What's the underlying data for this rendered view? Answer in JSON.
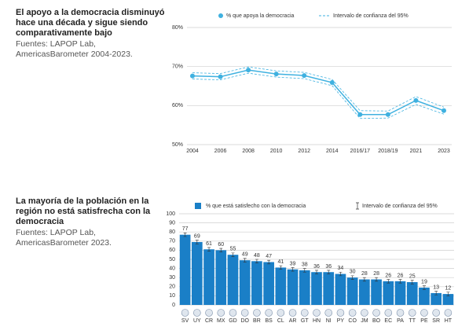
{
  "chart_data": [
    {
      "type": "line",
      "title": "El apoyo a la democracia disminuyó hace una década y sigue siendo comparativamente bajo",
      "subtitle": "Fuentes: LAPOP Lab, AmericasBarometer 2004-2023.",
      "categories": [
        "2004",
        "2006",
        "2008",
        "2010",
        "2012",
        "2014",
        "2016/17",
        "2018/19",
        "2021",
        "2023"
      ],
      "series": [
        {
          "name": "% que apoya la democracia",
          "color": "#3fb1e0",
          "values": [
            67.6,
            67.4,
            69.1,
            68.1,
            67.7,
            65.9,
            57.7,
            57.7,
            61.3,
            58.7
          ],
          "ci_lower": [
            66.8,
            66.6,
            68.3,
            67.3,
            66.9,
            65.1,
            56.7,
            56.8,
            60.3,
            57.8
          ],
          "ci_upper": [
            68.4,
            68.2,
            69.9,
            68.9,
            68.5,
            66.7,
            58.7,
            58.6,
            62.3,
            59.6
          ]
        }
      ],
      "ci_label": "Intervalo de confianza del 95%",
      "ylim": [
        50,
        80
      ],
      "yticks": [
        {
          "value": 50,
          "label": "50%"
        },
        {
          "value": 60,
          "label": "60%"
        },
        {
          "value": 70,
          "label": "70%"
        },
        {
          "value": 80,
          "label": "80%"
        }
      ],
      "grid": true
    },
    {
      "type": "bar",
      "title": "La mayoría de la población en la región no está satisfrecha con la democracia",
      "subtitle": "Fuentes: LAPOP Lab, AmericasBarometer 2023.",
      "categories": [
        "SV",
        "UY",
        "CR",
        "MX",
        "GD",
        "DO",
        "BR",
        "BS",
        "CL",
        "AR",
        "GT",
        "HN",
        "NI",
        "PY",
        "CO",
        "JM",
        "BO",
        "EC",
        "PA",
        "TT",
        "PE",
        "SR",
        "HT"
      ],
      "series": [
        {
          "name": "% que está satisfecho con la democracia",
          "color": "#1a7fc7",
          "values": [
            77,
            69,
            61,
            60,
            55,
            49,
            48,
            47,
            41,
            39,
            38,
            36,
            36,
            34,
            30,
            28,
            28,
            26,
            26,
            25,
            19,
            13,
            12
          ],
          "errors": [
            2,
            2,
            2,
            2,
            2,
            2,
            2,
            2,
            2,
            2,
            2,
            2,
            2,
            2,
            2,
            2,
            2,
            2,
            2,
            2,
            2,
            2,
            2
          ]
        }
      ],
      "ci_label": "Intervalo de confianza del 95%",
      "ylim": [
        0,
        100
      ],
      "yticks": [
        0,
        10,
        20,
        30,
        40,
        50,
        60,
        70,
        80,
        90,
        100
      ],
      "grid": true
    }
  ]
}
